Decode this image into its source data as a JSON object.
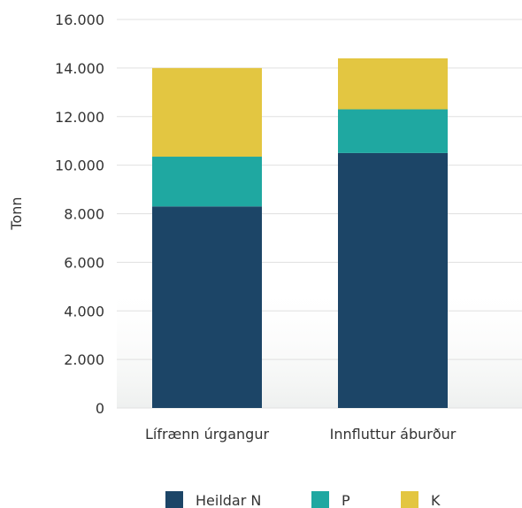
{
  "chart_data": {
    "type": "bar",
    "stacked": true,
    "categories": [
      "Lífrænn úrgangur",
      "Innfluttur áburður"
    ],
    "series": [
      {
        "name": "Heildar N",
        "values": [
          8300,
          10500
        ],
        "color": "#1c4567"
      },
      {
        "name": "P",
        "values": [
          2050,
          1800
        ],
        "color": "#1fa8a1"
      },
      {
        "name": "K",
        "values": [
          3650,
          2100
        ],
        "color": "#e3c641"
      }
    ],
    "ylabel": "Tonn",
    "ylim": [
      0,
      16000
    ],
    "yticks": [
      0,
      2000,
      4000,
      6000,
      8000,
      10000,
      12000,
      14000,
      16000
    ],
    "ytick_labels": [
      "0",
      "2.000",
      "4.000",
      "6.000",
      "8.000",
      "10.000",
      "12.000",
      "14.000",
      "16.000"
    ],
    "grid": true,
    "legend_position": "bottom"
  }
}
